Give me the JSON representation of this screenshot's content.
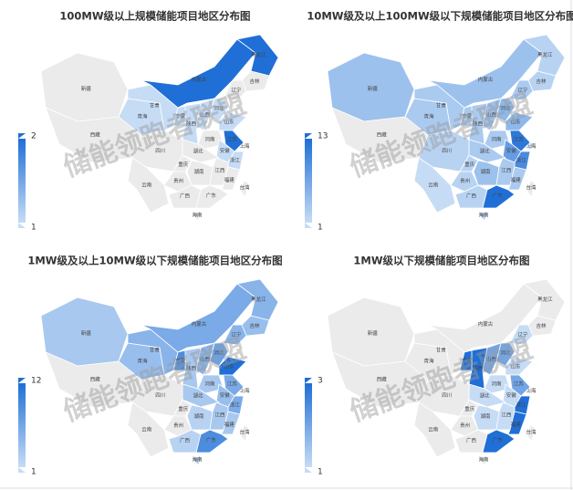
{
  "watermark": "储能领跑者联盟",
  "color_range": [
    "#c6dcf5",
    "#1f6fd6"
  ],
  "empty_color": "#ebebeb",
  "regions": [
    "新疆",
    "西藏",
    "青海",
    "甘肃",
    "内蒙古",
    "黑龙江",
    "吉林",
    "辽宁",
    "河北",
    "山西",
    "陕西",
    "宁夏",
    "山东",
    "河南",
    "江苏",
    "安徽",
    "上海",
    "浙江",
    "湖北",
    "四川",
    "重庆",
    "湖南",
    "江西",
    "福建",
    "贵州",
    "云南",
    "广西",
    "广东",
    "海南",
    "台湾"
  ],
  "charts": [
    {
      "title": "100MW级以上规模储能项目地区分布图",
      "visual_max": 2,
      "visual_min": 1,
      "values": [
        null,
        null,
        1,
        1,
        2,
        2,
        null,
        null,
        1,
        1,
        1,
        1,
        1,
        null,
        2,
        1,
        null,
        1,
        null,
        null,
        null,
        null,
        null,
        null,
        null,
        null,
        null,
        null,
        null,
        null
      ]
    },
    {
      "title": "10MW级及以上100MW级以下规模储能项目地区分布图",
      "visual_max": 13,
      "visual_min": 1,
      "values": [
        4,
        null,
        3,
        3,
        4,
        2,
        2,
        3,
        5,
        4,
        3,
        3,
        5,
        3,
        12,
        8,
        2,
        10,
        3,
        2,
        2,
        4,
        3,
        3,
        2,
        1,
        2,
        13,
        2,
        null
      ]
    },
    {
      "title": "1MW级及以上10MW级以下规模储能项目地区分布图",
      "visual_max": 12,
      "visual_min": 1,
      "values": [
        3,
        null,
        4,
        5,
        6,
        5,
        4,
        5,
        7,
        5,
        3,
        9,
        12,
        3,
        6,
        4,
        null,
        6,
        3,
        null,
        null,
        2,
        3,
        3,
        null,
        null,
        2,
        9,
        2,
        null
      ]
    },
    {
      "title": "1MW级以下规模储能项目地区分布图",
      "visual_max": 3,
      "visual_min": 1,
      "values": [
        null,
        null,
        null,
        null,
        null,
        null,
        null,
        1,
        2,
        2,
        3,
        3,
        1,
        1,
        2,
        1,
        null,
        3,
        1,
        null,
        null,
        1,
        1,
        3,
        null,
        null,
        null,
        3,
        null,
        null
      ]
    }
  ]
}
